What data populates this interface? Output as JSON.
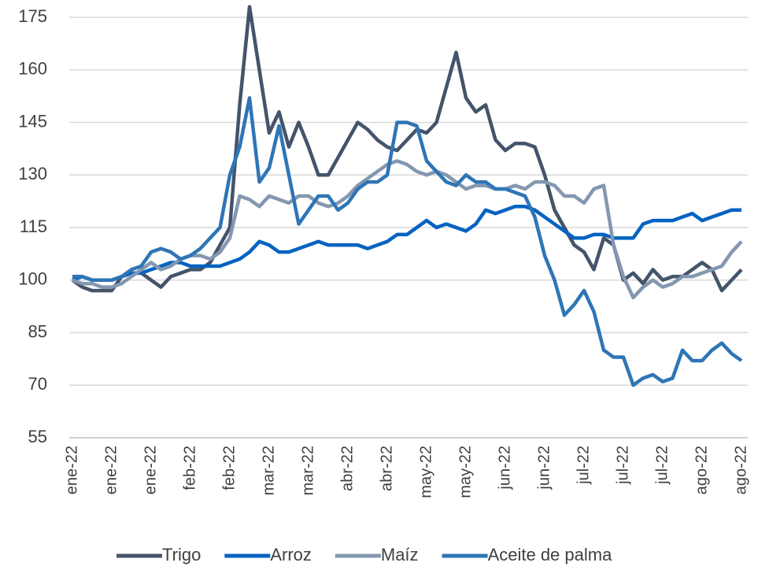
{
  "chart_data": {
    "type": "line",
    "categories": [
      "ene-22",
      null,
      null,
      null,
      "ene-22",
      null,
      null,
      null,
      "ene-22",
      null,
      null,
      null,
      "feb-22",
      null,
      null,
      null,
      "feb-22",
      null,
      null,
      null,
      "mar-22",
      null,
      null,
      null,
      "mar-22",
      null,
      null,
      null,
      "abr-22",
      null,
      null,
      null,
      "abr-22",
      null,
      null,
      null,
      "may-22",
      null,
      null,
      null,
      "may-22",
      null,
      null,
      null,
      "jun-22",
      null,
      null,
      null,
      "jun-22",
      null,
      null,
      null,
      "jul-22",
      null,
      null,
      null,
      "jul-22",
      null,
      null,
      null,
      "jul-22",
      null,
      null,
      null,
      "ago-22",
      null,
      null,
      null,
      "ago-22"
    ],
    "series": [
      {
        "name": "Trigo",
        "color": "#44546a",
        "values": [
          100,
          98,
          97,
          97,
          97,
          101,
          102,
          102,
          100,
          98,
          101,
          102,
          103,
          103,
          105,
          110,
          115,
          150,
          178,
          160,
          142,
          148,
          138,
          145,
          138,
          130,
          130,
          135,
          140,
          145,
          143,
          140,
          138,
          137,
          140,
          143,
          142,
          145,
          155,
          165,
          152,
          148,
          150,
          140,
          137,
          139,
          139,
          138,
          130,
          120,
          115,
          110,
          108,
          103,
          112,
          110,
          100,
          102,
          99,
          103,
          100,
          101,
          101,
          103,
          105,
          103,
          97,
          100,
          103
        ]
      },
      {
        "name": "Arroz",
        "color": "#0563c1",
        "values": [
          100,
          101,
          100,
          100,
          100,
          101,
          102,
          102,
          103,
          104,
          105,
          105,
          104,
          104,
          104,
          104,
          105,
          106,
          108,
          111,
          110,
          108,
          108,
          109,
          110,
          111,
          110,
          110,
          110,
          110,
          109,
          110,
          111,
          113,
          113,
          115,
          117,
          115,
          116,
          115,
          114,
          116,
          120,
          119,
          120,
          121,
          121,
          120,
          118,
          116,
          114,
          112,
          112,
          113,
          113,
          112,
          112,
          112,
          116,
          117,
          117,
          117,
          118,
          119,
          117,
          118,
          119,
          120,
          120
        ]
      },
      {
        "name": "Maíz",
        "color": "#8497b0",
        "values": [
          100,
          99,
          99,
          98,
          98,
          99,
          101,
          103,
          105,
          103,
          104,
          106,
          107,
          107,
          106,
          108,
          112,
          124,
          123,
          121,
          124,
          123,
          122,
          124,
          124,
          122,
          121,
          122,
          124,
          127,
          129,
          131,
          133,
          134,
          133,
          131,
          130,
          131,
          130,
          128,
          126,
          127,
          127,
          126,
          126,
          127,
          126,
          128,
          128,
          127,
          124,
          124,
          122,
          126,
          127,
          110,
          101,
          95,
          98,
          100,
          98,
          99,
          101,
          101,
          102,
          103,
          104,
          108,
          111
        ]
      },
      {
        "name": "Aceite de palma",
        "color": "#2e75b6",
        "values": [
          101,
          101,
          100,
          100,
          100,
          101,
          103,
          104,
          108,
          109,
          108,
          106,
          107,
          109,
          112,
          115,
          130,
          138,
          152,
          128,
          132,
          144,
          130,
          116,
          120,
          124,
          124,
          120,
          122,
          126,
          128,
          128,
          130,
          145,
          145,
          144,
          134,
          131,
          128,
          127,
          130,
          128,
          128,
          126,
          126,
          125,
          124,
          118,
          107,
          100,
          90,
          93,
          97,
          91,
          80,
          78,
          78,
          70,
          72,
          73,
          71,
          72,
          80,
          77,
          77,
          80,
          82,
          79,
          77
        ]
      }
    ],
    "ylim": [
      55,
      175
    ],
    "yticks": [
      55,
      70,
      85,
      100,
      115,
      130,
      145,
      160,
      175
    ],
    "grid": true,
    "legend": "bottom"
  }
}
